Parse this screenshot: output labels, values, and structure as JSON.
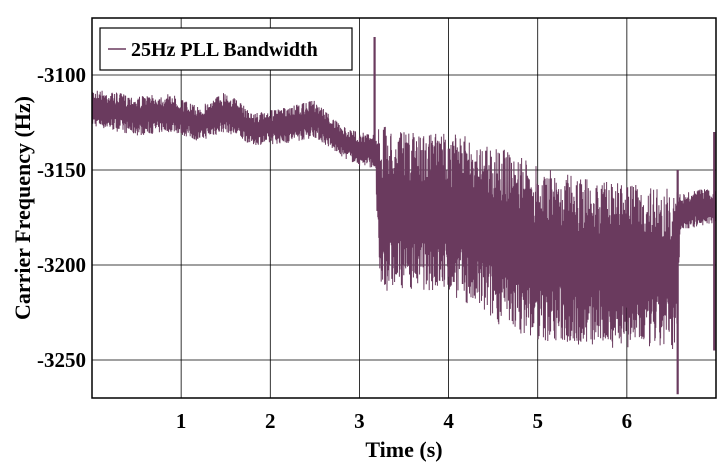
{
  "chart_data": {
    "type": "line",
    "xlabel": "Time (s)",
    "ylabel": "Carrier Frequency (Hz)",
    "xlim": [
      0,
      7
    ],
    "ylim": [
      -3270,
      -3070
    ],
    "x_ticks": [
      1,
      2,
      3,
      4,
      5,
      6
    ],
    "y_ticks": [
      -3100,
      -3150,
      -3200,
      -3250
    ],
    "grid": true,
    "legend_position": "top-left",
    "colors": {
      "series": "#6a3a5e",
      "axes": "#000000",
      "grid": "#000000"
    },
    "series": [
      {
        "name": "25Hz PLL Bandwidth",
        "envelope": {
          "x": [
            0.0,
            0.5,
            0.9,
            1.2,
            1.5,
            1.8,
            2.2,
            2.5,
            2.8,
            3.0,
            3.18,
            3.22,
            3.5,
            4.0,
            4.5,
            5.0,
            5.5,
            6.0,
            6.5,
            6.55,
            6.6,
            6.8,
            7.0
          ],
          "upper": [
            -3107,
            -3111,
            -3110,
            -3117,
            -3108,
            -3120,
            -3117,
            -3113,
            -3127,
            -3130,
            -3131,
            -3126,
            -3130,
            -3130,
            -3136,
            -3148,
            -3154,
            -3157,
            -3160,
            -3160,
            -3163,
            -3160,
            -3160
          ],
          "lower": [
            -3127,
            -3132,
            -3130,
            -3135,
            -3130,
            -3137,
            -3136,
            -3133,
            -3143,
            -3148,
            -3149,
            -3215,
            -3212,
            -3215,
            -3230,
            -3240,
            -3243,
            -3244,
            -3245,
            -3245,
            -3182,
            -3180,
            -3178
          ]
        },
        "spikes": [
          {
            "x": 3.17,
            "high": -3080,
            "low": -3148
          },
          {
            "x": 6.57,
            "high": -3150,
            "low": -3268
          },
          {
            "x": 6.98,
            "high": -3130,
            "low": -3245
          }
        ]
      }
    ]
  }
}
